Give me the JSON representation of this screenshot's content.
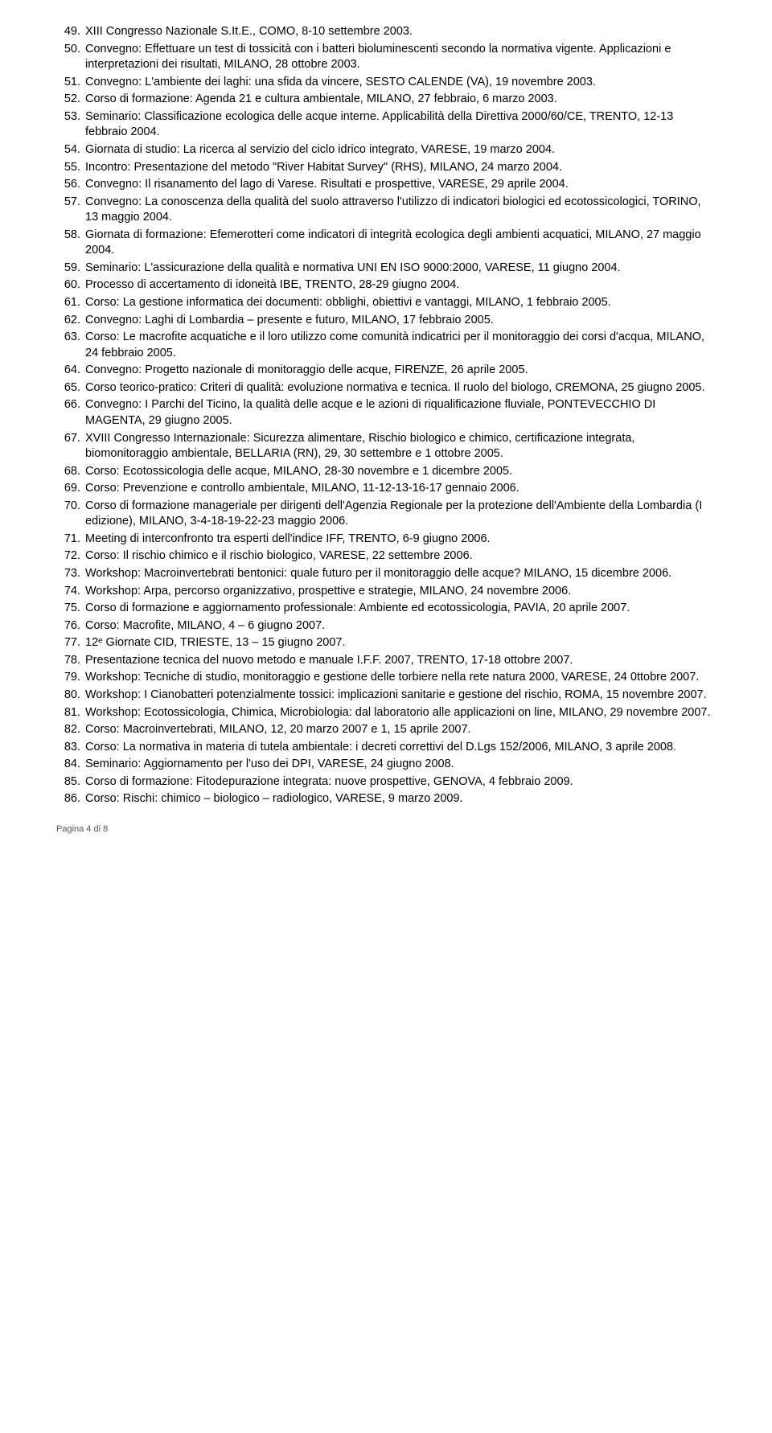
{
  "entries": [
    {
      "n": "49.",
      "t": "XIII Congresso Nazionale S.It.E., COMO, 8-10 settembre 2003."
    },
    {
      "n": "50.",
      "t": "Convegno: Effettuare un test di tossicità con i batteri bioluminescenti secondo la normativa vigente. Applicazioni e interpretazioni dei risultati, MILANO, 28 ottobre 2003."
    },
    {
      "n": "51.",
      "t": "Convegno: L'ambiente dei laghi: una sfida da vincere, SESTO CALENDE (VA), 19 novembre 2003."
    },
    {
      "n": "52.",
      "t": "Corso di formazione: Agenda 21 e cultura ambientale, MILANO, 27 febbraio, 6 marzo 2003."
    },
    {
      "n": "53.",
      "t": "Seminario: Classificazione ecologica delle acque interne. Applicabilità della Direttiva 2000/60/CE, TRENTO, 12-13 febbraio 2004."
    },
    {
      "n": "54.",
      "t": "Giornata di studio: La ricerca al servizio del ciclo idrico integrato, VARESE, 19 marzo 2004."
    },
    {
      "n": "55.",
      "t": "Incontro: Presentazione del metodo \"River Habitat Survey\" (RHS), MILANO, 24 marzo 2004."
    },
    {
      "n": "56.",
      "t": "Convegno: Il risanamento del lago di Varese. Risultati e prospettive, VARESE, 29 aprile 2004."
    },
    {
      "n": "57.",
      "t": "Convegno: La conoscenza della qualità del suolo attraverso l'utilizzo di indicatori biologici ed ecotossicologici, TORINO, 13 maggio 2004."
    },
    {
      "n": "58.",
      "t": "Giornata di formazione: Efemerotteri come indicatori di integrità ecologica degli ambienti acquatici, MILANO, 27 maggio 2004."
    },
    {
      "n": "59.",
      "t": "Seminario: L'assicurazione della qualità e normativa UNI EN ISO 9000:2000, VARESE, 11 giugno 2004."
    },
    {
      "n": "60.",
      "t": "Processo di accertamento di idoneità IBE, TRENTO, 28-29 giugno 2004."
    },
    {
      "n": "61.",
      "t": "Corso: La gestione informatica dei documenti: obblighi, obiettivi e vantaggi, MILANO, 1 febbraio 2005."
    },
    {
      "n": "62.",
      "t": "Convegno: Laghi di Lombardia – presente e futuro, MILANO, 17 febbraio 2005."
    },
    {
      "n": "63.",
      "t": "Corso: Le macrofite acquatiche e il loro utilizzo come comunità indicatrici per il monitoraggio dei corsi d'acqua, MILANO, 24 febbraio 2005."
    },
    {
      "n": "64.",
      "t": "Convegno: Progetto nazionale di monitoraggio delle acque, FIRENZE, 26 aprile 2005."
    },
    {
      "n": "65.",
      "t": "Corso teorico-pratico: Criteri di qualità: evoluzione normativa e tecnica. Il ruolo del biologo, CREMONA, 25 giugno 2005."
    },
    {
      "n": "66.",
      "t": "Convegno: I Parchi del Ticino, la qualità delle acque e le azioni di riqualificazione fluviale, PONTEVECCHIO DI MAGENTA, 29 giugno 2005."
    },
    {
      "n": "67.",
      "t": "XVIII Congresso Internazionale: Sicurezza alimentare, Rischio biologico e chimico, certificazione integrata, biomonitoraggio ambientale, BELLARIA (RN), 29, 30 settembre e 1 ottobre 2005."
    },
    {
      "n": "68.",
      "t": "Corso: Ecotossicologia delle acque, MILANO, 28-30 novembre e 1 dicembre 2005."
    },
    {
      "n": "69.",
      "t": "Corso: Prevenzione e controllo ambientale, MILANO, 11-12-13-16-17 gennaio 2006."
    },
    {
      "n": "70.",
      "t": "Corso di formazione manageriale per dirigenti dell'Agenzia Regionale per la protezione dell'Ambiente della Lombardia (I edizione), MILANO, 3-4-18-19-22-23 maggio 2006."
    },
    {
      "n": "71.",
      "t": "Meeting di interconfronto tra esperti dell'indice IFF, TRENTO, 6-9 giugno 2006."
    },
    {
      "n": "72.",
      "t": "Corso: Il rischio chimico e il rischio biologico, VARESE, 22 settembre 2006."
    },
    {
      "n": "73.",
      "t": "Workshop: Macroinvertebrati bentonici: quale futuro per il monitoraggio delle acque? MILANO, 15 dicembre 2006."
    },
    {
      "n": "74.",
      "t": "Workshop: Arpa, percorso organizzativo, prospettive e strategie, MILANO, 24 novembre 2006."
    },
    {
      "n": "75.",
      "t": "Corso di formazione e aggiornamento professionale: Ambiente ed ecotossicologia, PAVIA, 20 aprile 2007."
    },
    {
      "n": "76.",
      "t": "Corso: Macrofite, MILANO, 4 – 6 giugno 2007."
    },
    {
      "n": "77.",
      "t": "12ᵉ Giornate CID, TRIESTE, 13 – 15 giugno 2007."
    },
    {
      "n": "78.",
      "t": "Presentazione tecnica del nuovo metodo e manuale I.F.F. 2007, TRENTO, 17-18 ottobre 2007."
    },
    {
      "n": "79.",
      "t": "Workshop: Tecniche di studio, monitoraggio e gestione delle torbiere nella rete natura 2000, VARESE, 24 0ttobre 2007."
    },
    {
      "n": "80.",
      "t": "Workshop: I Cianobatteri potenzialmente tossici: implicazioni sanitarie e gestione del rischio, ROMA, 15 novembre 2007."
    },
    {
      "n": "81.",
      "t": "Workshop: Ecotossicologia, Chimica, Microbiologia: dal laboratorio alle applicazioni on line, MILANO, 29 novembre 2007."
    },
    {
      "n": "82.",
      "t": "Corso: Macroinvertebrati, MILANO, 12, 20 marzo 2007 e 1, 15 aprile 2007."
    },
    {
      "n": "83.",
      "t": "Corso: La normativa in materia di tutela ambientale: i decreti correttivi del D.Lgs 152/2006, MILANO, 3 aprile 2008."
    },
    {
      "n": "84.",
      "t": "Seminario: Aggiornamento per l'uso dei DPI, VARESE, 24 giugno 2008."
    },
    {
      "n": "85.",
      "t": "Corso di formazione: Fitodepurazione integrata: nuove prospettive, GENOVA, 4 febbraio 2009."
    },
    {
      "n": "86.",
      "t": "Corso: Rischi: chimico – biologico – radiologico, VARESE, 9 marzo 2009."
    }
  ],
  "footer": "Pagina 4 di 8"
}
